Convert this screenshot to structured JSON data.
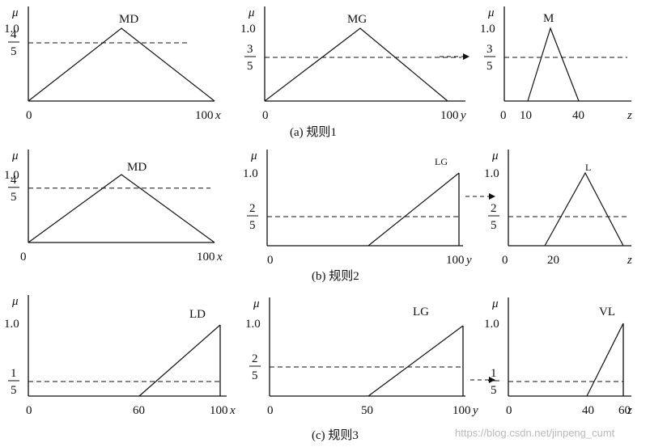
{
  "rules": [
    {
      "caption": "(a) 规则1",
      "plots": [
        {
          "name": "MD",
          "axis_label": "x",
          "mu": "μ",
          "ticks": [
            "0",
            "100"
          ],
          "y_top": "1.0",
          "cut_num": "4",
          "cut_den": "5",
          "cut": 0.8,
          "shape": "tri",
          "peak_frac": 0.49,
          "start_frac": 0,
          "end_frac": 1
        },
        {
          "name": "MG",
          "axis_label": "y",
          "mu": "μ",
          "ticks": [
            "0",
            "100"
          ],
          "y_top": "1.0",
          "cut_num": "3",
          "cut_den": "5",
          "cut": 0.6,
          "shape": "tri",
          "peak_frac": 0.5,
          "start_frac": 0,
          "end_frac": 1
        },
        {
          "name": "M",
          "axis_label": "z",
          "mu": "μ",
          "ticks": [
            "0",
            "10",
            "40"
          ],
          "y_top": "1.0",
          "cut_num": "3",
          "cut_den": "5",
          "cut": 0.6,
          "shape": "tri"
        }
      ]
    },
    {
      "caption": "(b) 规则2",
      "plots": [
        {
          "name": "MD",
          "axis_label": "x",
          "mu": "μ",
          "ticks": [
            "0",
            "100"
          ],
          "y_top": "1.0",
          "cut_num": "4",
          "cut_den": "5",
          "cut": 0.8,
          "shape": "tri"
        },
        {
          "name": "LG",
          "axis_label": "y",
          "mu": "μ",
          "ticks": [
            "0",
            "100"
          ],
          "y_top": "1.0",
          "cut_num": "2",
          "cut_den": "5",
          "cut": 0.4,
          "shape": "ramp"
        },
        {
          "name": "L",
          "axis_label": "z",
          "mu": "μ",
          "ticks": [
            "0",
            "20"
          ],
          "y_top": "1.0",
          "cut_num": "2",
          "cut_den": "5",
          "cut": 0.4,
          "shape": "tri"
        }
      ]
    },
    {
      "caption": "(c) 规则3",
      "plots": [
        {
          "name": "LD",
          "axis_label": "x",
          "mu": "μ",
          "ticks": [
            "0",
            "60",
            "100"
          ],
          "y_top": "1.0",
          "cut_num": "1",
          "cut_den": "5",
          "cut": 0.2,
          "shape": "ramp"
        },
        {
          "name": "LG",
          "axis_label": "y",
          "mu": "μ",
          "ticks": [
            "0",
            "50",
            "100"
          ],
          "y_top": "1.0",
          "cut_num": "2",
          "cut_den": "5",
          "cut": 0.4,
          "shape": "ramp"
        },
        {
          "name": "VL",
          "axis_label": "z",
          "mu": "μ",
          "ticks": [
            "0",
            "40",
            "60"
          ],
          "y_top": "1.0",
          "cut_num": "1",
          "cut_den": "5",
          "cut": 0.2,
          "shape": "ramp"
        }
      ]
    }
  ],
  "watermark": "https://blog.csdn.net/jinpeng_cumt"
}
